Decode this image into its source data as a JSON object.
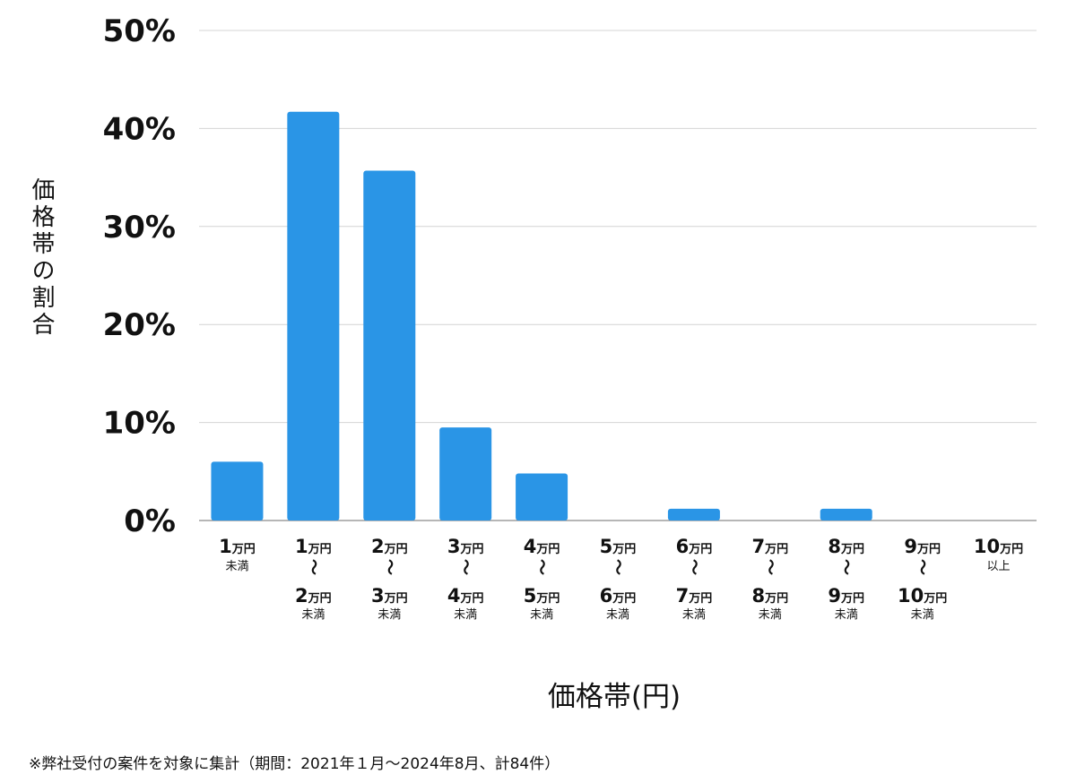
{
  "chart_data": {
    "type": "bar",
    "xlabel": "価格帯(円)",
    "ylabel": "価格帯の割合",
    "ylim": [
      0,
      50
    ],
    "yticks": [
      "0%",
      "10%",
      "20%",
      "30%",
      "40%",
      "50%"
    ],
    "grid": true,
    "bar_color": "#2a95e6",
    "categories": [
      {
        "from": "1",
        "from_unit": "万円",
        "to": "",
        "to_unit": "",
        "suffix": "未満"
      },
      {
        "from": "1",
        "from_unit": "万円",
        "to": "2",
        "to_unit": "万円",
        "suffix": "未満"
      },
      {
        "from": "2",
        "from_unit": "万円",
        "to": "3",
        "to_unit": "万円",
        "suffix": "未満"
      },
      {
        "from": "3",
        "from_unit": "万円",
        "to": "4",
        "to_unit": "万円",
        "suffix": "未満"
      },
      {
        "from": "4",
        "from_unit": "万円",
        "to": "5",
        "to_unit": "万円",
        "suffix": "未満"
      },
      {
        "from": "5",
        "from_unit": "万円",
        "to": "6",
        "to_unit": "万円",
        "suffix": "未満"
      },
      {
        "from": "6",
        "from_unit": "万円",
        "to": "7",
        "to_unit": "万円",
        "suffix": "未満"
      },
      {
        "from": "7",
        "from_unit": "万円",
        "to": "8",
        "to_unit": "万円",
        "suffix": "未満"
      },
      {
        "from": "8",
        "from_unit": "万円",
        "to": "9",
        "to_unit": "万円",
        "suffix": "未満"
      },
      {
        "from": "9",
        "from_unit": "万円",
        "to": "10",
        "to_unit": "万円",
        "suffix": "未満"
      },
      {
        "from": "10",
        "from_unit": "万円",
        "to": "",
        "to_unit": "",
        "suffix": "以上"
      }
    ],
    "range_mark": "〜",
    "values": [
      6.0,
      41.7,
      35.7,
      9.5,
      4.8,
      0,
      1.2,
      0,
      1.2,
      0,
      0
    ]
  },
  "footnote": "※弊社受付の案件を対象に集計（期間：2021年１月〜2024年8月、計84件）"
}
